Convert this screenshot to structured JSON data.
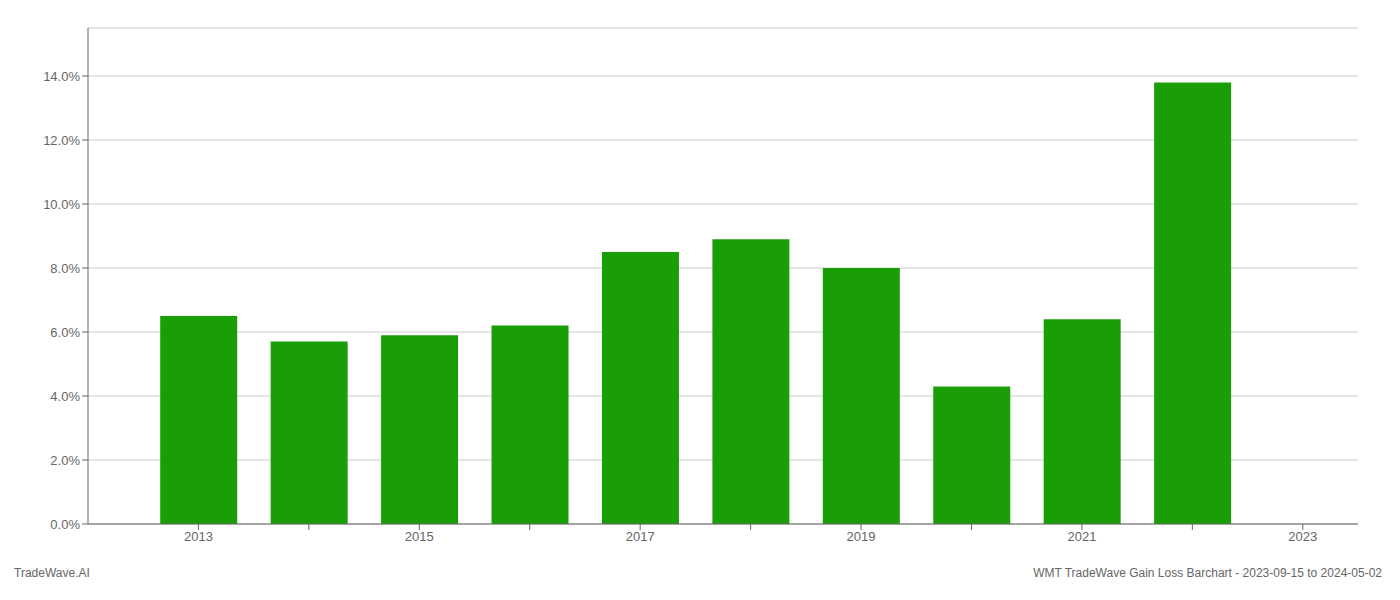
{
  "chart_data": {
    "type": "bar",
    "x": [
      2013,
      2014,
      2015,
      2016,
      2017,
      2018,
      2019,
      2020,
      2021,
      2022
    ],
    "values": [
      0.065,
      0.057,
      0.059,
      0.062,
      0.085,
      0.089,
      0.08,
      0.043,
      0.064,
      0.138
    ],
    "color": "#1a9e06",
    "xlim": [
      2012.0,
      2023.5
    ],
    "xticks": [
      2013,
      {
        "value": 2014,
        "label": null
      },
      2015,
      {
        "value": 2016,
        "label": null
      },
      2017,
      {
        "value": 2018,
        "label": null
      },
      2019,
      {
        "value": 2020,
        "label": null
      },
      2021,
      {
        "value": 2022,
        "label": null
      },
      2023
    ],
    "ylim": [
      0,
      0.155
    ],
    "yticks": [
      {
        "value": 0.0,
        "label": "0.0%"
      },
      {
        "value": 0.02,
        "label": "2.0%"
      },
      {
        "value": 0.04,
        "label": "4.0%"
      },
      {
        "value": 0.06,
        "label": "6.0%"
      },
      {
        "value": 0.08,
        "label": "8.0%"
      },
      {
        "value": 0.1,
        "label": "10.0%"
      },
      {
        "value": 0.12,
        "label": "12.0%"
      },
      {
        "value": 0.14,
        "label": "14.0%"
      }
    ],
    "grid": true,
    "annotations": [
      "TradeWave.AI",
      "WMT TradeWave Gain Loss Barchart - 2023-09-15 to 2024-05-02"
    ]
  }
}
